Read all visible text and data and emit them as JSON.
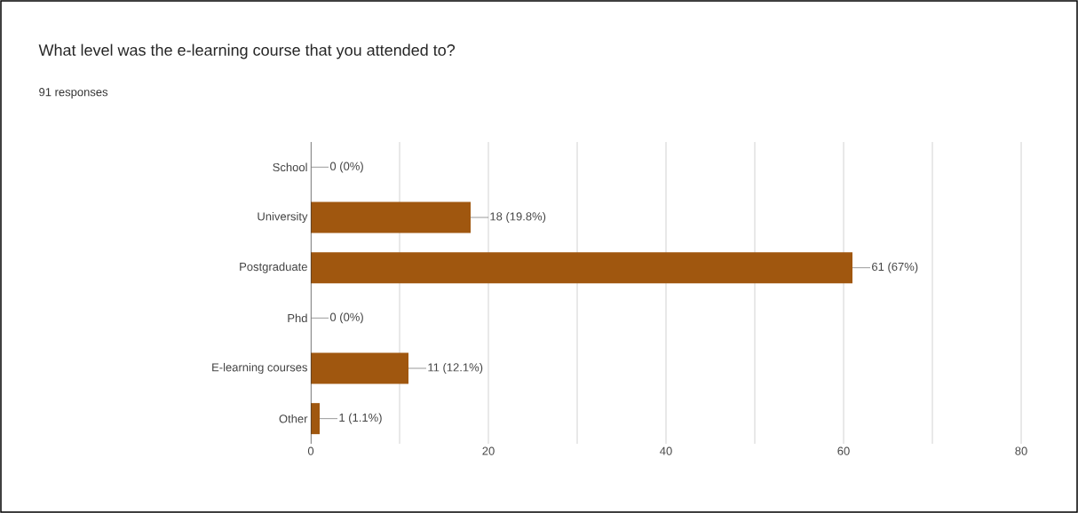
{
  "chart_data": {
    "type": "bar",
    "orientation": "horizontal",
    "title": "What level was the e-learning course that you attended to?",
    "subtitle": "91 responses",
    "categories": [
      "School",
      "University",
      "Postgraduate",
      "Phd",
      "E-learning courses",
      "Other"
    ],
    "values": [
      0,
      18,
      61,
      0,
      11,
      1
    ],
    "value_labels": [
      "0 (0%)",
      "18 (19.8%)",
      "61 (67%)",
      "0 (0%)",
      "11 (12.1%)",
      "1 (1.1%)"
    ],
    "color": "#a0570f",
    "xlim": [
      0,
      80
    ],
    "xticks": [
      0,
      {
        "value": 10,
        "label": null
      },
      20,
      {
        "value": 30,
        "label": null
      },
      40,
      {
        "value": 50,
        "label": null
      },
      60,
      {
        "value": 70,
        "label": null
      },
      80
    ],
    "grid": "x"
  }
}
